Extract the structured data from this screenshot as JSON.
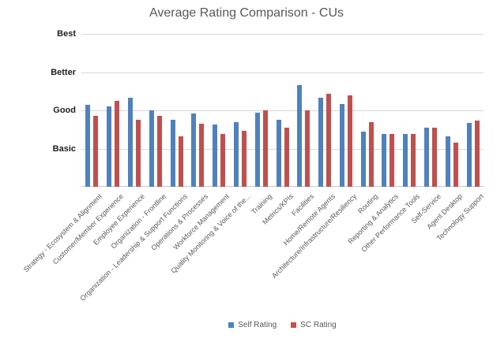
{
  "title": "Average Rating Comparison - CUs",
  "colors": {
    "self_rating": "#4F81BD",
    "sc_rating": "#C0504D",
    "gridline": "#D9D9D9",
    "axis_line": "#C6C6C6",
    "title_text": "#595959",
    "y_tick_text": "#1F1F1F",
    "category_text": "#595959",
    "background": "#FFFFFF"
  },
  "legend": {
    "position": "bottom-center",
    "items": [
      {
        "label": "Self Rating",
        "color": "#4F81BD"
      },
      {
        "label": "SC Rating",
        "color": "#C0504D"
      }
    ]
  },
  "chart_data": {
    "type": "bar",
    "title": "Average Rating Comparison - CUs",
    "xlabel": "",
    "ylabel": "",
    "ylim": [
      0,
      4
    ],
    "grid": true,
    "legend_position": "bottom",
    "y_ticks": [
      {
        "value": 4,
        "label": "Best"
      },
      {
        "value": 3,
        "label": "Better"
      },
      {
        "value": 2,
        "label": "Good"
      },
      {
        "value": 1,
        "label": "Basic"
      }
    ],
    "categories": [
      "Strategy - Ecosystem & Alignment",
      "Customer/Member Experience",
      "Employee Experience",
      "Organization - Frontline",
      "Organization - Leadership & Support Functions",
      "Operations & Processes",
      "Workforce Management",
      "Quality Monitoring & Voice of the...",
      "Training",
      "Metrics/KPIs",
      "Facilities",
      "Home/Remote Agents",
      "Architecture/Infrastructure/Resiliency",
      "Routing",
      "Reporting & Analytics",
      "Other Performance Tools",
      "Self-Service",
      "Agent Desktop",
      "Technology Support"
    ],
    "series": [
      {
        "name": "Self Rating",
        "color": "#4F81BD",
        "values": [
          2.15,
          2.1,
          2.32,
          2.0,
          1.76,
          1.92,
          1.62,
          1.69,
          1.93,
          1.75,
          2.67,
          2.33,
          2.16,
          1.44,
          1.38,
          1.38,
          1.54,
          1.31,
          1.68
        ]
      },
      {
        "name": "SC Rating",
        "color": "#C0504D",
        "values": [
          1.85,
          2.25,
          1.75,
          1.85,
          1.31,
          1.66,
          1.38,
          1.46,
          2.0,
          1.55,
          2.0,
          2.43,
          2.4,
          1.7,
          1.38,
          1.38,
          1.54,
          1.16,
          1.74
        ]
      }
    ]
  }
}
